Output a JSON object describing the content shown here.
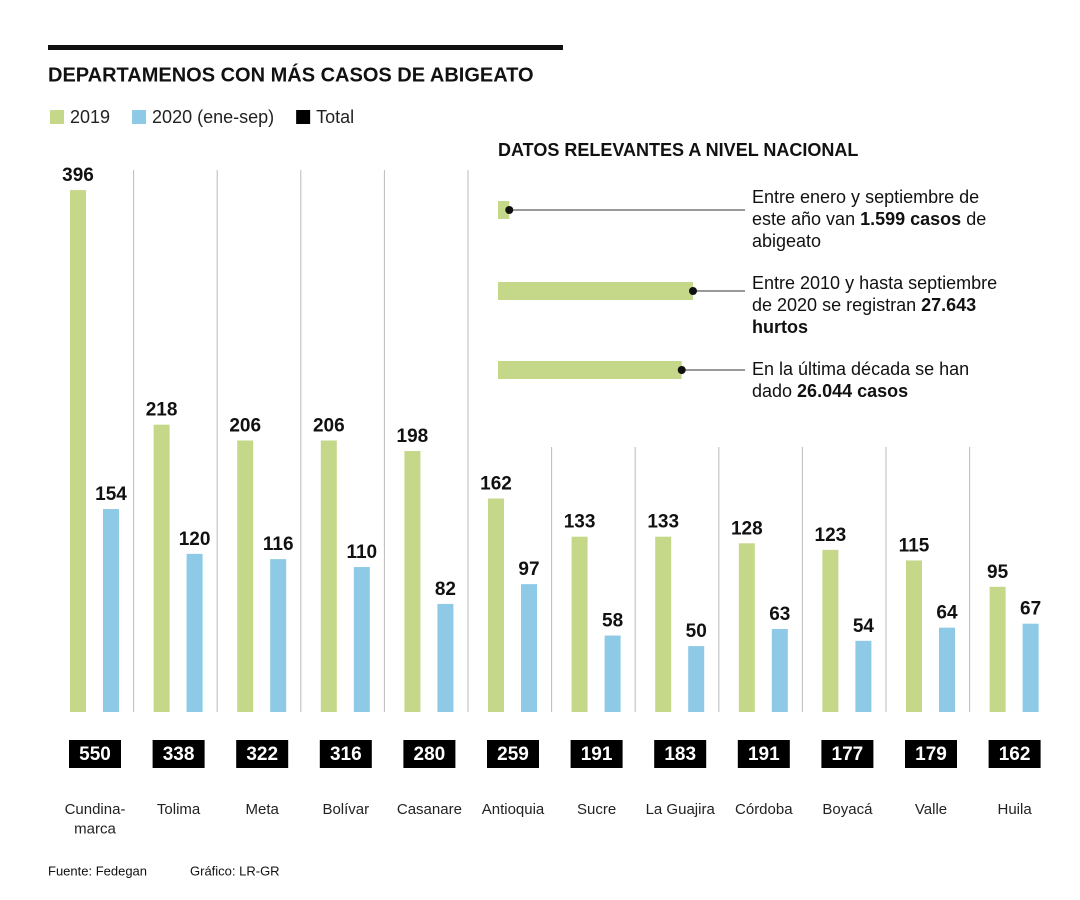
{
  "chart_data": {
    "type": "grouped_bar_totals",
    "title": "DEPARTAMENOS CON MÁS CASOS DE ABIGEATO",
    "categories": [
      "Cundina-\nmarca",
      "Tolima",
      "Meta",
      "Bolívar",
      "Casanare",
      "Antioquia",
      "Sucre",
      "La Guajira",
      "Córdoba",
      "Boyacá",
      "Valle",
      "Huila"
    ],
    "series": [
      {
        "name": "2019",
        "color": "#c5d88a",
        "values": [
          396,
          218,
          206,
          206,
          198,
          162,
          133,
          133,
          128,
          123,
          115,
          95
        ]
      },
      {
        "name": "2020 (ene-sep)",
        "color": "#8ecae6",
        "values": [
          154,
          120,
          116,
          110,
          82,
          97,
          58,
          50,
          63,
          54,
          64,
          67
        ]
      },
      {
        "name": "Total",
        "color": "#000000",
        "values": [
          550,
          338,
          322,
          316,
          280,
          259,
          191,
          183,
          191,
          177,
          179,
          162
        ]
      }
    ],
    "source": "Fuente: Fedegan",
    "credit": "Gráfico: LR-GR"
  },
  "panel": {
    "title": "DATOS RELEVANTES A NIVEL NACIONAL",
    "color": "#c5d88a",
    "items": [
      {
        "value": 1599,
        "before": "Entre enero y septiembre de este año van ",
        "bold": "1.599 casos",
        "after": " de abigeato"
      },
      {
        "value": 27643,
        "before": "Entre 2010 y hasta septiembre de 2020 se registran ",
        "bold": "27.643 hurtos"
      },
      {
        "value": 26044,
        "before": "En la última década se han dado ",
        "bold": "26.044 casos"
      }
    ]
  }
}
